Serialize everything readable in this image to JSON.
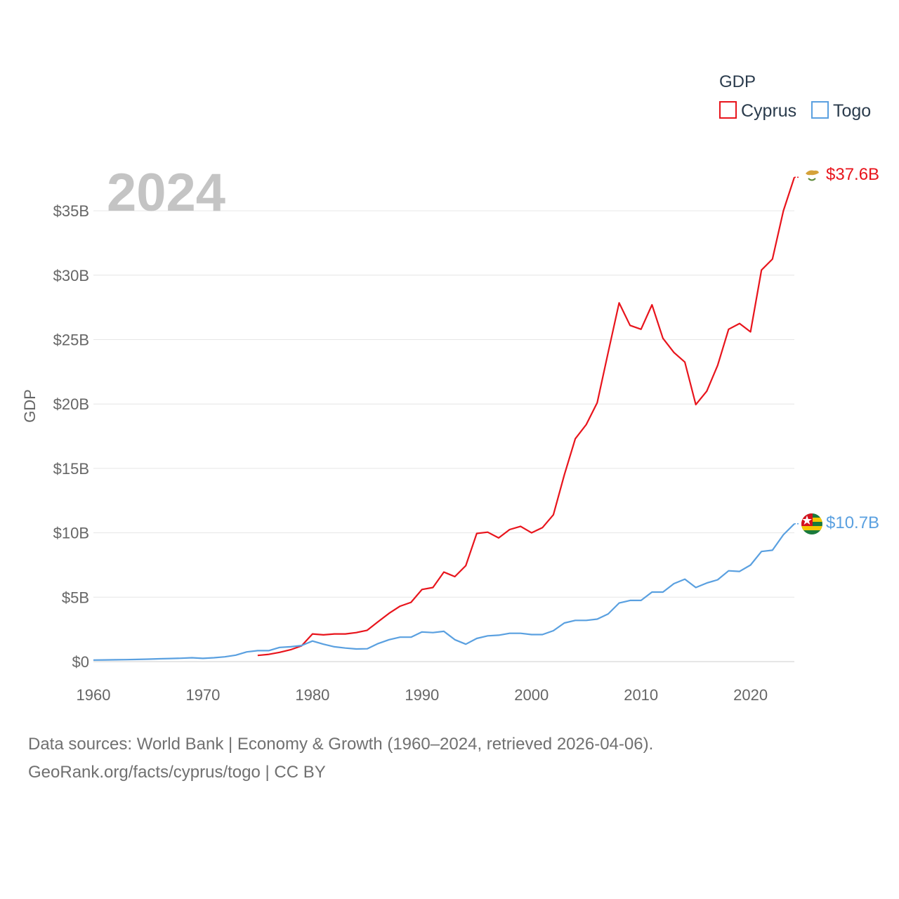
{
  "chart_data": {
    "type": "line",
    "title": "",
    "xlabel": "",
    "ylabel": "GDP",
    "xlim": [
      1960,
      2024
    ],
    "ylim": [
      0,
      38000000000
    ],
    "yticks": [
      {
        "value": 0,
        "label": "$0"
      },
      {
        "value": 5000000000,
        "label": "$5B"
      },
      {
        "value": 10000000000,
        "label": "$10B"
      },
      {
        "value": 15000000000,
        "label": "$15B"
      },
      {
        "value": 20000000000,
        "label": "$20B"
      },
      {
        "value": 25000000000,
        "label": "$25B"
      },
      {
        "value": 30000000000,
        "label": "$30B"
      },
      {
        "value": 35000000000,
        "label": "$35B"
      }
    ],
    "xticks": [
      {
        "value": 1960,
        "label": "1960"
      },
      {
        "value": 1970,
        "label": "1970"
      },
      {
        "value": 1980,
        "label": "1980"
      },
      {
        "value": 1990,
        "label": "1990"
      },
      {
        "value": 2000,
        "label": "2000"
      },
      {
        "value": 2010,
        "label": "2010"
      },
      {
        "value": 2020,
        "label": "2020"
      }
    ],
    "grid": true,
    "year_label": "2024",
    "legend": {
      "title": "GDP",
      "position": "top-right"
    },
    "series": [
      {
        "name": "Cyprus",
        "color": "#e8141c",
        "end_label": "$37.6B",
        "flag_icon": "cyprus-flag-icon",
        "x": [
          1975,
          1976,
          1977,
          1978,
          1979,
          1980,
          1981,
          1982,
          1983,
          1984,
          1985,
          1986,
          1987,
          1988,
          1989,
          1990,
          1991,
          1992,
          1993,
          1994,
          1995,
          1996,
          1997,
          1998,
          1999,
          2000,
          2001,
          2002,
          2003,
          2004,
          2005,
          2006,
          2007,
          2008,
          2009,
          2010,
          2011,
          2012,
          2013,
          2014,
          2015,
          2016,
          2017,
          2018,
          2019,
          2020,
          2021,
          2022,
          2023,
          2024
        ],
        "values": [
          0.48,
          0.56,
          0.72,
          0.92,
          1.22,
          2.15,
          2.08,
          2.15,
          2.15,
          2.25,
          2.43,
          3.1,
          3.75,
          4.3,
          4.6,
          5.6,
          5.75,
          6.95,
          6.6,
          7.45,
          9.95,
          10.05,
          9.6,
          10.25,
          10.5,
          10.0,
          10.4,
          11.4,
          14.5,
          17.3,
          18.4,
          20.1,
          24.0,
          27.85,
          26.1,
          25.8,
          27.7,
          25.1,
          24.0,
          23.25,
          19.95,
          21.0,
          23.0,
          25.8,
          26.25,
          25.6,
          30.4,
          31.25,
          35.0,
          37.6
        ],
        "unit": "billion USD"
      },
      {
        "name": "Togo",
        "color": "#5aa0e0",
        "end_label": "$10.7B",
        "flag_icon": "togo-flag-icon",
        "x": [
          1960,
          1961,
          1962,
          1963,
          1964,
          1965,
          1966,
          1967,
          1968,
          1969,
          1970,
          1971,
          1972,
          1973,
          1974,
          1975,
          1976,
          1977,
          1978,
          1979,
          1980,
          1981,
          1982,
          1983,
          1984,
          1985,
          1986,
          1987,
          1988,
          1989,
          1990,
          1991,
          1992,
          1993,
          1994,
          1995,
          1996,
          1997,
          1998,
          1999,
          2000,
          2001,
          2002,
          2003,
          2004,
          2005,
          2006,
          2007,
          2008,
          2009,
          2010,
          2011,
          2012,
          2013,
          2014,
          2015,
          2016,
          2017,
          2018,
          2019,
          2020,
          2021,
          2022,
          2023,
          2024
        ],
        "values": [
          0.12,
          0.13,
          0.14,
          0.15,
          0.17,
          0.19,
          0.22,
          0.24,
          0.26,
          0.3,
          0.25,
          0.3,
          0.37,
          0.5,
          0.75,
          0.85,
          0.85,
          1.1,
          1.15,
          1.25,
          1.6,
          1.35,
          1.15,
          1.05,
          0.98,
          1.0,
          1.4,
          1.7,
          1.9,
          1.9,
          2.3,
          2.25,
          2.35,
          1.7,
          1.35,
          1.8,
          2.0,
          2.05,
          2.2,
          2.2,
          2.1,
          2.1,
          2.4,
          3.0,
          3.2,
          3.2,
          3.3,
          3.7,
          4.55,
          4.75,
          4.75,
          5.4,
          5.4,
          6.05,
          6.4,
          5.75,
          6.1,
          6.35,
          7.05,
          7.0,
          7.5,
          8.55,
          8.65,
          9.85,
          10.7
        ],
        "unit": "billion USD"
      }
    ]
  },
  "source": {
    "line1": "Data sources: World Bank | Economy & Growth (1960–2024, retrieved 2026-04-06).",
    "line2": "GeoRank.org/facts/cyprus/togo | CC BY"
  }
}
